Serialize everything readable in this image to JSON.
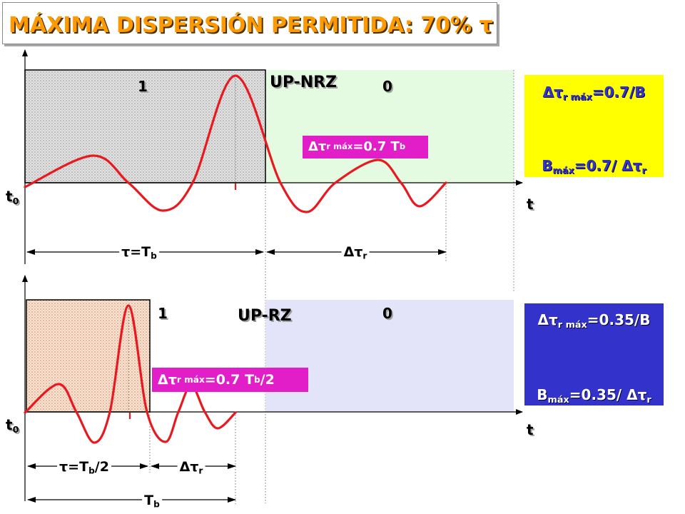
{
  "title": "MÁXIMA DISPERSIÓN PERMITIDA: 70% τ",
  "colors": {
    "title_text": "#FF9900",
    "pulse_curve": "#E8191F",
    "dispersion_box": "#E21EC8",
    "nrz_zero_area": "#E4FBE1",
    "rz_zero_area": "#E3E3FA",
    "nrz_formula_box": "#FFFF00",
    "nrz_formula_text": "#3333CC",
    "rz_formula_box": "#3333CC",
    "rz_formula_text": "#FFFFFF"
  },
  "nrz": {
    "code": "UP-NRZ",
    "bit_one": "1",
    "bit_zero": "0",
    "origin": {
      "base": "t",
      "sub": "0"
    },
    "time_axis": "t",
    "pulse_width": {
      "base": "τ=T",
      "sub": "b"
    },
    "dispersion": {
      "base": "Δτ",
      "sub": "r"
    },
    "max_dispersion": {
      "base": "Δτ",
      "sub": "r máx",
      "value": "=0.7 T",
      "value_sub": "b"
    },
    "formula_dispersion": {
      "base": "Δτ",
      "sub": "r máx",
      "value": "=0.7/B"
    },
    "formula_bitrate": {
      "base": "B",
      "sub": "máx",
      "value": "=0.7/ Δτ",
      "value_sub": "r"
    }
  },
  "rz": {
    "code": "UP-RZ",
    "bit_one": "1",
    "bit_zero": "0",
    "origin": {
      "base": "t",
      "sub": "0"
    },
    "time_axis": "t",
    "pulse_width": {
      "base": "τ=T",
      "sub": "b",
      "tail": "/2"
    },
    "dispersion": {
      "base": "Δτ",
      "sub": "r"
    },
    "bit_period": {
      "base": "T",
      "sub": "b"
    },
    "max_dispersion": {
      "base": "Δτ",
      "sub": "r máx",
      "value": "=0.7 T",
      "value_sub": "b",
      "tail": "/2"
    },
    "formula_dispersion": {
      "base": "Δτ",
      "sub": "r máx",
      "value": "=0.35/B"
    },
    "formula_bitrate": {
      "base": "B",
      "sub": "máx",
      "value": "=0.35/ Δτ",
      "value_sub": "r"
    }
  }
}
